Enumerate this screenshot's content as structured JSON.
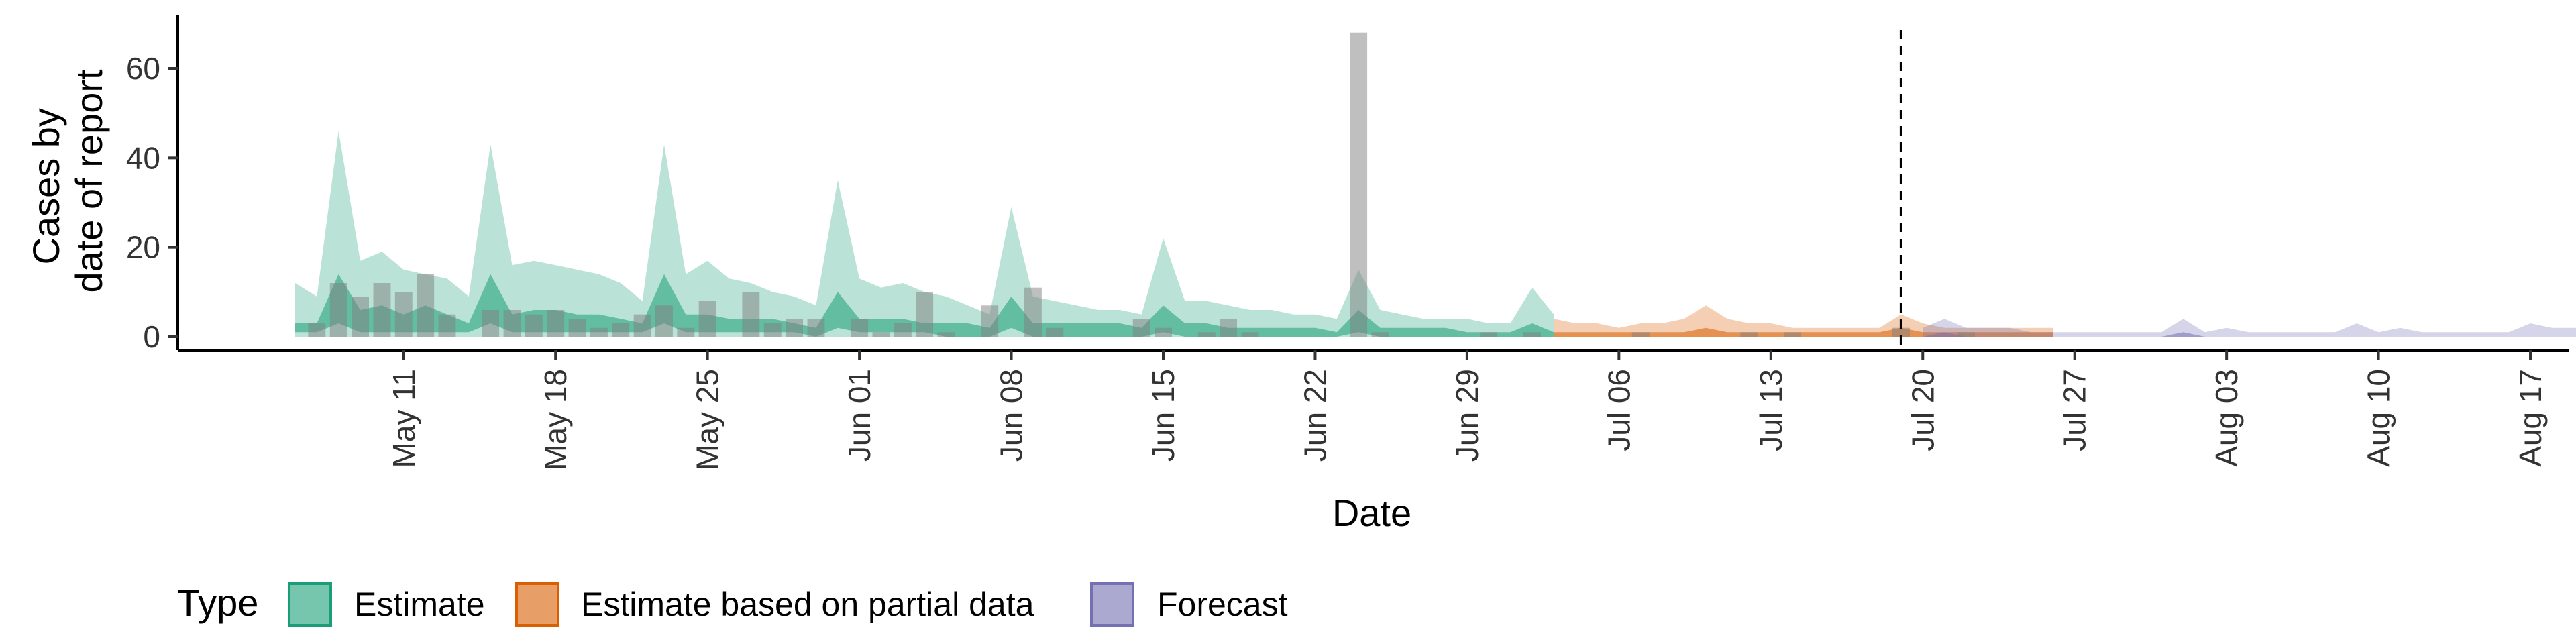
{
  "chart_data": {
    "type": "area",
    "title": "",
    "xlabel": "Date",
    "ylabel_lines": [
      "Cases by",
      "date of report"
    ],
    "ylim": [
      -3,
      72
    ],
    "yticks": [
      0,
      20,
      40,
      60
    ],
    "x_start": "May 06",
    "xlim_days": [
      -1,
      106
    ],
    "xticks": [
      {
        "day": 5,
        "label": "May 11"
      },
      {
        "day": 12,
        "label": "May 18"
      },
      {
        "day": 19,
        "label": "May 25"
      },
      {
        "day": 26,
        "label": "Jun 01"
      },
      {
        "day": 33,
        "label": "Jun 08"
      },
      {
        "day": 40,
        "label": "Jun 15"
      },
      {
        "day": 47,
        "label": "Jun 22"
      },
      {
        "day": 54,
        "label": "Jun 29"
      },
      {
        "day": 61,
        "label": "Jul 06"
      },
      {
        "day": 68,
        "label": "Jul 13"
      },
      {
        "day": 75,
        "label": "Jul 20"
      },
      {
        "day": 82,
        "label": "Jul 27"
      },
      {
        "day": 89,
        "label": "Aug 03"
      },
      {
        "day": 96,
        "label": "Aug 10"
      },
      {
        "day": 103,
        "label": "Aug 17"
      }
    ],
    "forecast_line_day": 74,
    "reported_cases": {
      "start_day": 0,
      "values": [
        0,
        3,
        12,
        9,
        12,
        10,
        14,
        5,
        0,
        6,
        6,
        5,
        6,
        4,
        2,
        3,
        5,
        7,
        2,
        8,
        0,
        10,
        3,
        4,
        4,
        0,
        4,
        1,
        3,
        10,
        1,
        0,
        7,
        0,
        11,
        2,
        0,
        0,
        0,
        4,
        2,
        0,
        1,
        4,
        1,
        0,
        0,
        0,
        0,
        68,
        1,
        0,
        0,
        0,
        0,
        1,
        0,
        1,
        0,
        0,
        0,
        0,
        1,
        0,
        0,
        0,
        0,
        1,
        0,
        1,
        0,
        0,
        0,
        0,
        2,
        0,
        0,
        1
      ]
    },
    "series": [
      {
        "name": "Estimate",
        "color": "#1b9e77",
        "start_day": 0,
        "upper90": [
          12,
          9,
          46,
          17,
          19,
          15,
          14,
          13,
          9,
          43,
          16,
          17,
          16,
          15,
          14,
          12,
          8,
          43,
          14,
          17,
          13,
          12,
          10,
          9,
          7,
          35,
          13,
          11,
          12,
          10,
          9,
          7,
          5,
          29,
          9,
          8,
          7,
          6,
          6,
          5,
          22,
          8,
          8,
          7,
          6,
          6,
          5,
          5,
          4,
          15,
          6,
          5,
          4,
          4,
          4,
          3,
          3,
          11,
          5
        ],
        "lower90": [
          0,
          0,
          0,
          0,
          0,
          0,
          0,
          0,
          0,
          0,
          0,
          0,
          0,
          0,
          0,
          0,
          0,
          0,
          0,
          0,
          0,
          0,
          0,
          0,
          0,
          0,
          0,
          0,
          0,
          0,
          0,
          0,
          0,
          0,
          0,
          0,
          0,
          0,
          0,
          0,
          0,
          0,
          0,
          0,
          0,
          0,
          0,
          0,
          0,
          0,
          0,
          0,
          0,
          0,
          0,
          0,
          0,
          0,
          0
        ],
        "upper50": [
          3,
          3,
          14,
          6,
          7,
          5,
          7,
          5,
          3,
          14,
          5,
          6,
          6,
          5,
          5,
          4,
          3,
          14,
          5,
          5,
          4,
          4,
          4,
          3,
          2,
          10,
          4,
          4,
          4,
          3,
          3,
          3,
          2,
          9,
          3,
          3,
          3,
          3,
          3,
          2,
          7,
          3,
          3,
          2,
          2,
          2,
          2,
          2,
          1,
          6,
          2,
          2,
          2,
          2,
          1,
          1,
          1,
          3,
          1
        ],
        "lower50": [
          1,
          1,
          3,
          1,
          1,
          1,
          1,
          1,
          1,
          3,
          1,
          1,
          1,
          1,
          1,
          1,
          1,
          3,
          1,
          1,
          1,
          1,
          1,
          1,
          0,
          2,
          1,
          1,
          1,
          1,
          0,
          0,
          0,
          2,
          0,
          0,
          0,
          0,
          0,
          0,
          1,
          0,
          0,
          0,
          0,
          0,
          0,
          0,
          0,
          1,
          0,
          0,
          0,
          0,
          0,
          0,
          0,
          0,
          0
        ]
      },
      {
        "name": "Estimate based on partial data",
        "color": "#d95f02",
        "start_day": 58,
        "upper90": [
          4,
          3,
          3,
          2,
          3,
          3,
          4,
          7,
          4,
          3,
          3,
          2,
          2,
          2,
          2,
          2,
          5,
          3,
          2,
          2,
          2,
          2,
          2,
          2
        ],
        "lower90": [
          0,
          0,
          0,
          0,
          0,
          0,
          0,
          0,
          0,
          0,
          0,
          0,
          0,
          0,
          0,
          0,
          0,
          0,
          0,
          0,
          0,
          0,
          0,
          0
        ],
        "upper50": [
          1,
          1,
          1,
          1,
          1,
          1,
          1,
          2,
          1,
          1,
          1,
          1,
          1,
          1,
          1,
          1,
          2,
          1,
          1,
          1,
          1,
          1,
          1,
          1
        ],
        "lower50": [
          0,
          0,
          0,
          0,
          0,
          0,
          0,
          0,
          0,
          0,
          0,
          0,
          0,
          0,
          0,
          0,
          0,
          0,
          0,
          0,
          0,
          0,
          0,
          0
        ]
      },
      {
        "name": "Forecast",
        "color": "#7570b3",
        "start_day": 75,
        "upper90": [
          2,
          4,
          2,
          2,
          2,
          1,
          1,
          1,
          1,
          1,
          1,
          1,
          4,
          1,
          2,
          1,
          1,
          1,
          1,
          1,
          3,
          1,
          2,
          1,
          1,
          1,
          1,
          1,
          3,
          2,
          2,
          2,
          1,
          1,
          1,
          1,
          1,
          1,
          4
        ],
        "lower90": [
          0,
          0,
          0,
          0,
          0,
          0,
          0,
          0,
          0,
          0,
          0,
          0,
          0,
          0,
          0,
          0,
          0,
          0,
          0,
          0,
          0,
          0,
          0,
          0,
          0,
          0,
          0,
          0,
          0,
          0,
          0,
          0,
          0,
          0,
          0,
          0,
          0,
          0,
          0
        ],
        "upper50": [
          0,
          1,
          0,
          0,
          0,
          0,
          0,
          0,
          0,
          0,
          0,
          0,
          1,
          0,
          0,
          0,
          0,
          0,
          0,
          0,
          0,
          0,
          0,
          0,
          0,
          0,
          0,
          0,
          0,
          0,
          0,
          0,
          0,
          0,
          0,
          0,
          0,
          0,
          0
        ],
        "lower50": [
          0,
          0,
          0,
          0,
          0,
          0,
          0,
          0,
          0,
          0,
          0,
          0,
          0,
          0,
          0,
          0,
          0,
          0,
          0,
          0,
          0,
          0,
          0,
          0,
          0,
          0,
          0,
          0,
          0,
          0,
          0,
          0,
          0,
          0,
          0,
          0,
          0,
          0,
          0
        ]
      }
    ],
    "legend": {
      "title": "Type",
      "position": "bottom-left",
      "entries": [
        "Estimate",
        "Estimate based on partial data",
        "Forecast"
      ]
    }
  }
}
